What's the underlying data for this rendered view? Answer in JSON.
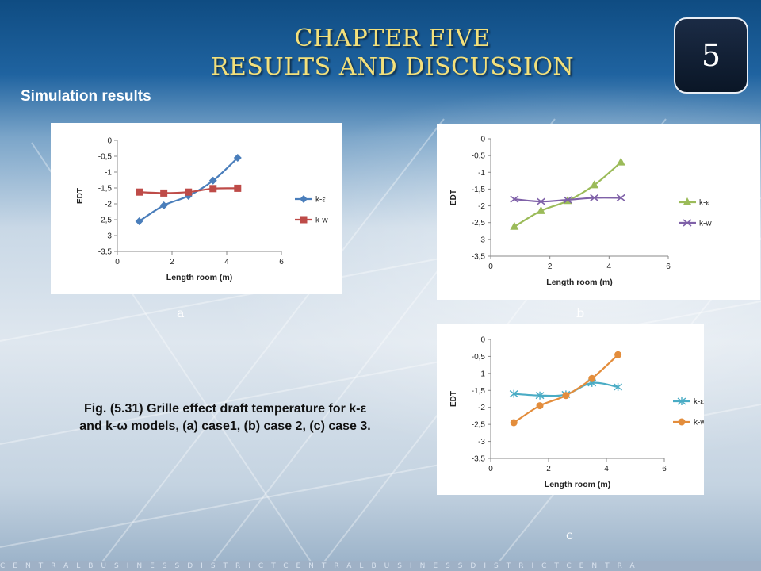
{
  "slide": {
    "title_line1": "CHAPTER  FIVE",
    "title_line2": "RESULTS  AND  DISCUSSION",
    "chapter_badge": "5",
    "subtitle": "Simulation results",
    "caption_line1": "Fig. (5.31) Grille effect draft temperature for k-ε",
    "caption_line2": "and k-ω models, (a) case1, (b) case 2, (c) case 3.",
    "footer_text": "CENTRALBUSINESSDISTRICTCENTRALBUSINESSDISTRICTCENTRA"
  },
  "chart_data": [
    {
      "type": "line",
      "panel_label": "a",
      "xlabel": "Length room (m)",
      "ylabel": "EDT",
      "xlim": [
        0,
        6
      ],
      "ylim": [
        -3.5,
        0
      ],
      "x_ticks": [
        "0",
        "2",
        "4",
        "6"
      ],
      "y_ticks": [
        "0",
        "-0,5",
        "-1",
        "-1,5",
        "-2",
        "-2,5",
        "-3",
        "-3,5"
      ],
      "grid": false,
      "legend_position": "right",
      "series": [
        {
          "name": "k-ε",
          "color": "#4a7ebb",
          "marker": "diamond",
          "x": [
            0.8,
            1.7,
            2.6,
            3.5,
            4.4
          ],
          "y": [
            -2.55,
            -2.05,
            -1.75,
            -1.27,
            -0.55
          ]
        },
        {
          "name": "k-w",
          "color": "#be4b48",
          "marker": "square",
          "x": [
            0.8,
            1.7,
            2.6,
            3.5,
            4.4
          ],
          "y": [
            -1.63,
            -1.66,
            -1.63,
            -1.52,
            -1.51
          ]
        }
      ]
    },
    {
      "type": "line",
      "panel_label": "b",
      "xlabel": "Length room (m)",
      "ylabel": "EDT",
      "xlim": [
        0,
        6
      ],
      "ylim": [
        -3.5,
        0
      ],
      "x_ticks": [
        "0",
        "2",
        "4",
        "6"
      ],
      "y_ticks": [
        "0",
        "-0,5",
        "-1",
        "-1,5",
        "-2",
        "-2,5",
        "-3",
        "-3,5"
      ],
      "grid": false,
      "legend_position": "right",
      "series": [
        {
          "name": "k-ε",
          "color": "#9bbb59",
          "marker": "triangle",
          "x": [
            0.8,
            1.7,
            2.6,
            3.5,
            4.4
          ],
          "y": [
            -2.62,
            -2.15,
            -1.85,
            -1.38,
            -0.7
          ]
        },
        {
          "name": "k-w",
          "color": "#7f61a8",
          "marker": "x",
          "x": [
            0.8,
            1.7,
            2.6,
            3.5,
            4.4
          ],
          "y": [
            -1.8,
            -1.87,
            -1.82,
            -1.76,
            -1.76
          ]
        }
      ]
    },
    {
      "type": "line",
      "panel_label": "c",
      "xlabel": "Length room (m)",
      "ylabel": "EDT",
      "xlim": [
        0,
        6
      ],
      "ylim": [
        -3.5,
        0
      ],
      "x_ticks": [
        "0",
        "2",
        "4",
        "6"
      ],
      "y_ticks": [
        "0",
        "-0,5",
        "-1",
        "-1,5",
        "-2",
        "-2,5",
        "-3",
        "-3,5"
      ],
      "grid": false,
      "legend_position": "right",
      "series": [
        {
          "name": "k-ε",
          "color": "#4aacc5",
          "marker": "asterisk",
          "x": [
            0.8,
            1.7,
            2.6,
            3.5,
            4.4
          ],
          "y": [
            -1.6,
            -1.65,
            -1.62,
            -1.28,
            -1.4
          ]
        },
        {
          "name": "k-w",
          "color": "#e38d3c",
          "marker": "circle",
          "x": [
            0.8,
            1.7,
            2.6,
            3.5,
            4.4
          ],
          "y": [
            -2.45,
            -1.95,
            -1.65,
            -1.15,
            -0.45
          ]
        }
      ]
    }
  ]
}
